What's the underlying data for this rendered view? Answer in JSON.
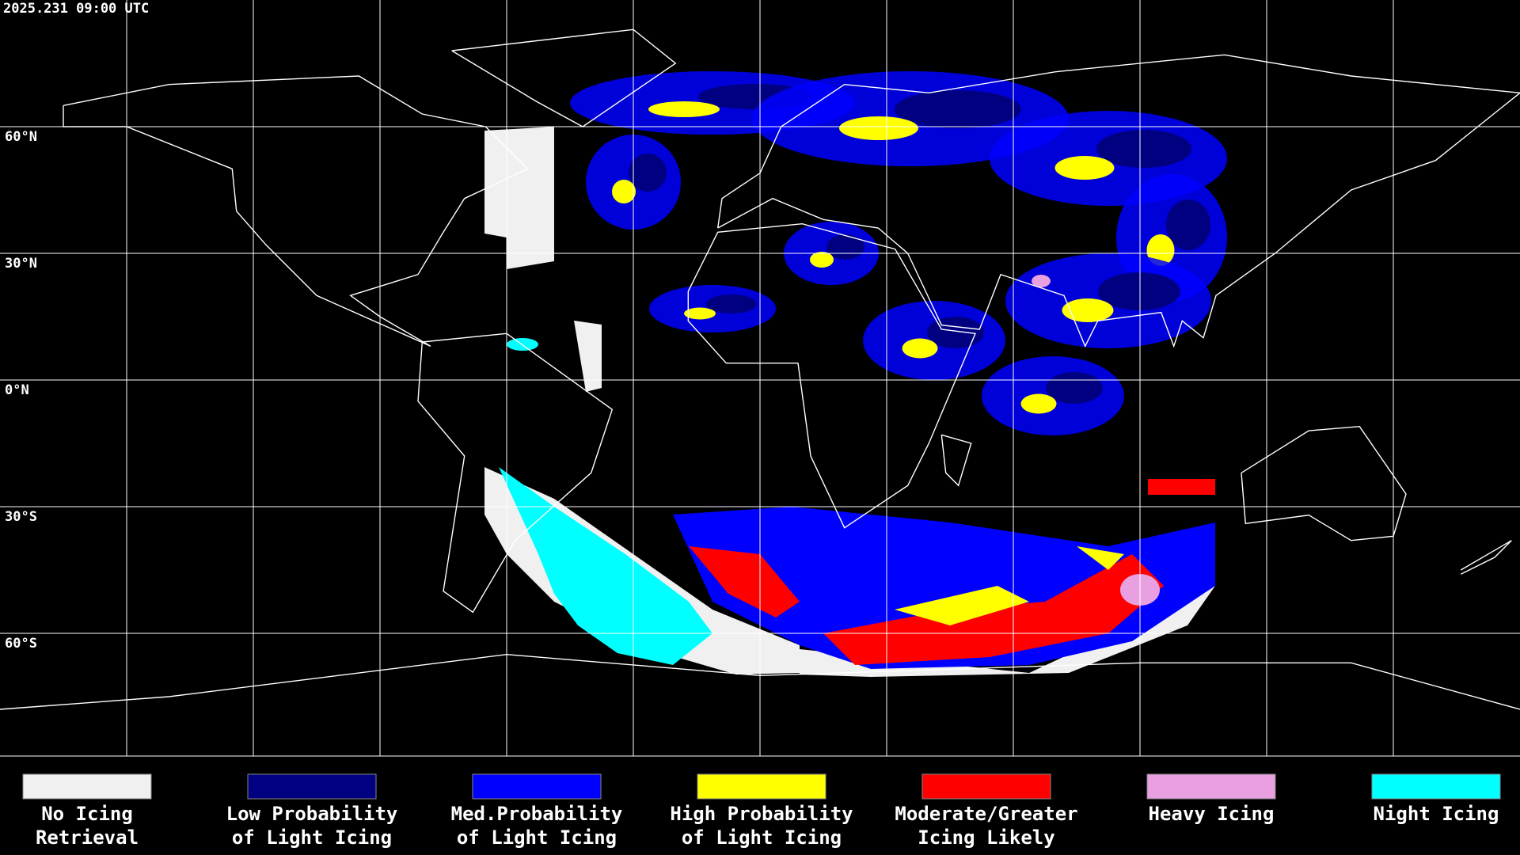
{
  "header": {
    "timestamp": "2025.231 09:00 UTC"
  },
  "map": {
    "lat_labels": [
      "60°N",
      "30°N",
      "0°N",
      "30°S",
      "60°S"
    ]
  },
  "legend": {
    "items": [
      {
        "lines": [
          "No Icing",
          "Retrieval"
        ],
        "color": "#f0f0f0"
      },
      {
        "lines": [
          "Low Probability",
          "of Light Icing"
        ],
        "color": "#000080"
      },
      {
        "lines": [
          "Med.Probability",
          "of Light Icing"
        ],
        "color": "#0000ff"
      },
      {
        "lines": [
          "High Probability",
          "of Light Icing"
        ],
        "color": "#ffff00"
      },
      {
        "lines": [
          "Moderate/Greater",
          "Icing Likely"
        ],
        "color": "#ff0000"
      },
      {
        "lines": [
          "Heavy Icing"
        ],
        "color": "#e8a0e0"
      },
      {
        "lines": [
          "Night Icing"
        ],
        "color": "#00ffff"
      }
    ]
  }
}
